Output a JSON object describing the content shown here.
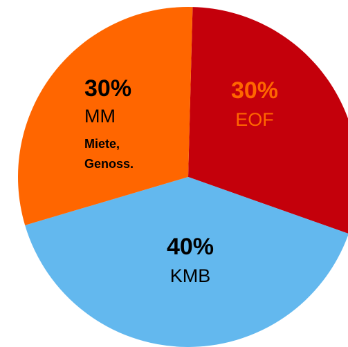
{
  "chart_data": {
    "type": "pie",
    "title": "",
    "slices": [
      {
        "label": "EOF",
        "value": 30,
        "value_label": "30%",
        "color": "#c4000b"
      },
      {
        "label": "KMB",
        "value": 40,
        "value_label": "40%",
        "color": "#63b8ee"
      },
      {
        "label": "MM",
        "value": 30,
        "value_label": "30%",
        "note_lines": [
          "Miete,",
          "Genoss."
        ],
        "color": "#ff6600"
      }
    ],
    "start_angle_deg": 1.5,
    "direction": "clockwise",
    "label_colors": {
      "EOF": "#ff6600",
      "KMB": "#000000",
      "MM": "#000000"
    },
    "legend": "none"
  }
}
